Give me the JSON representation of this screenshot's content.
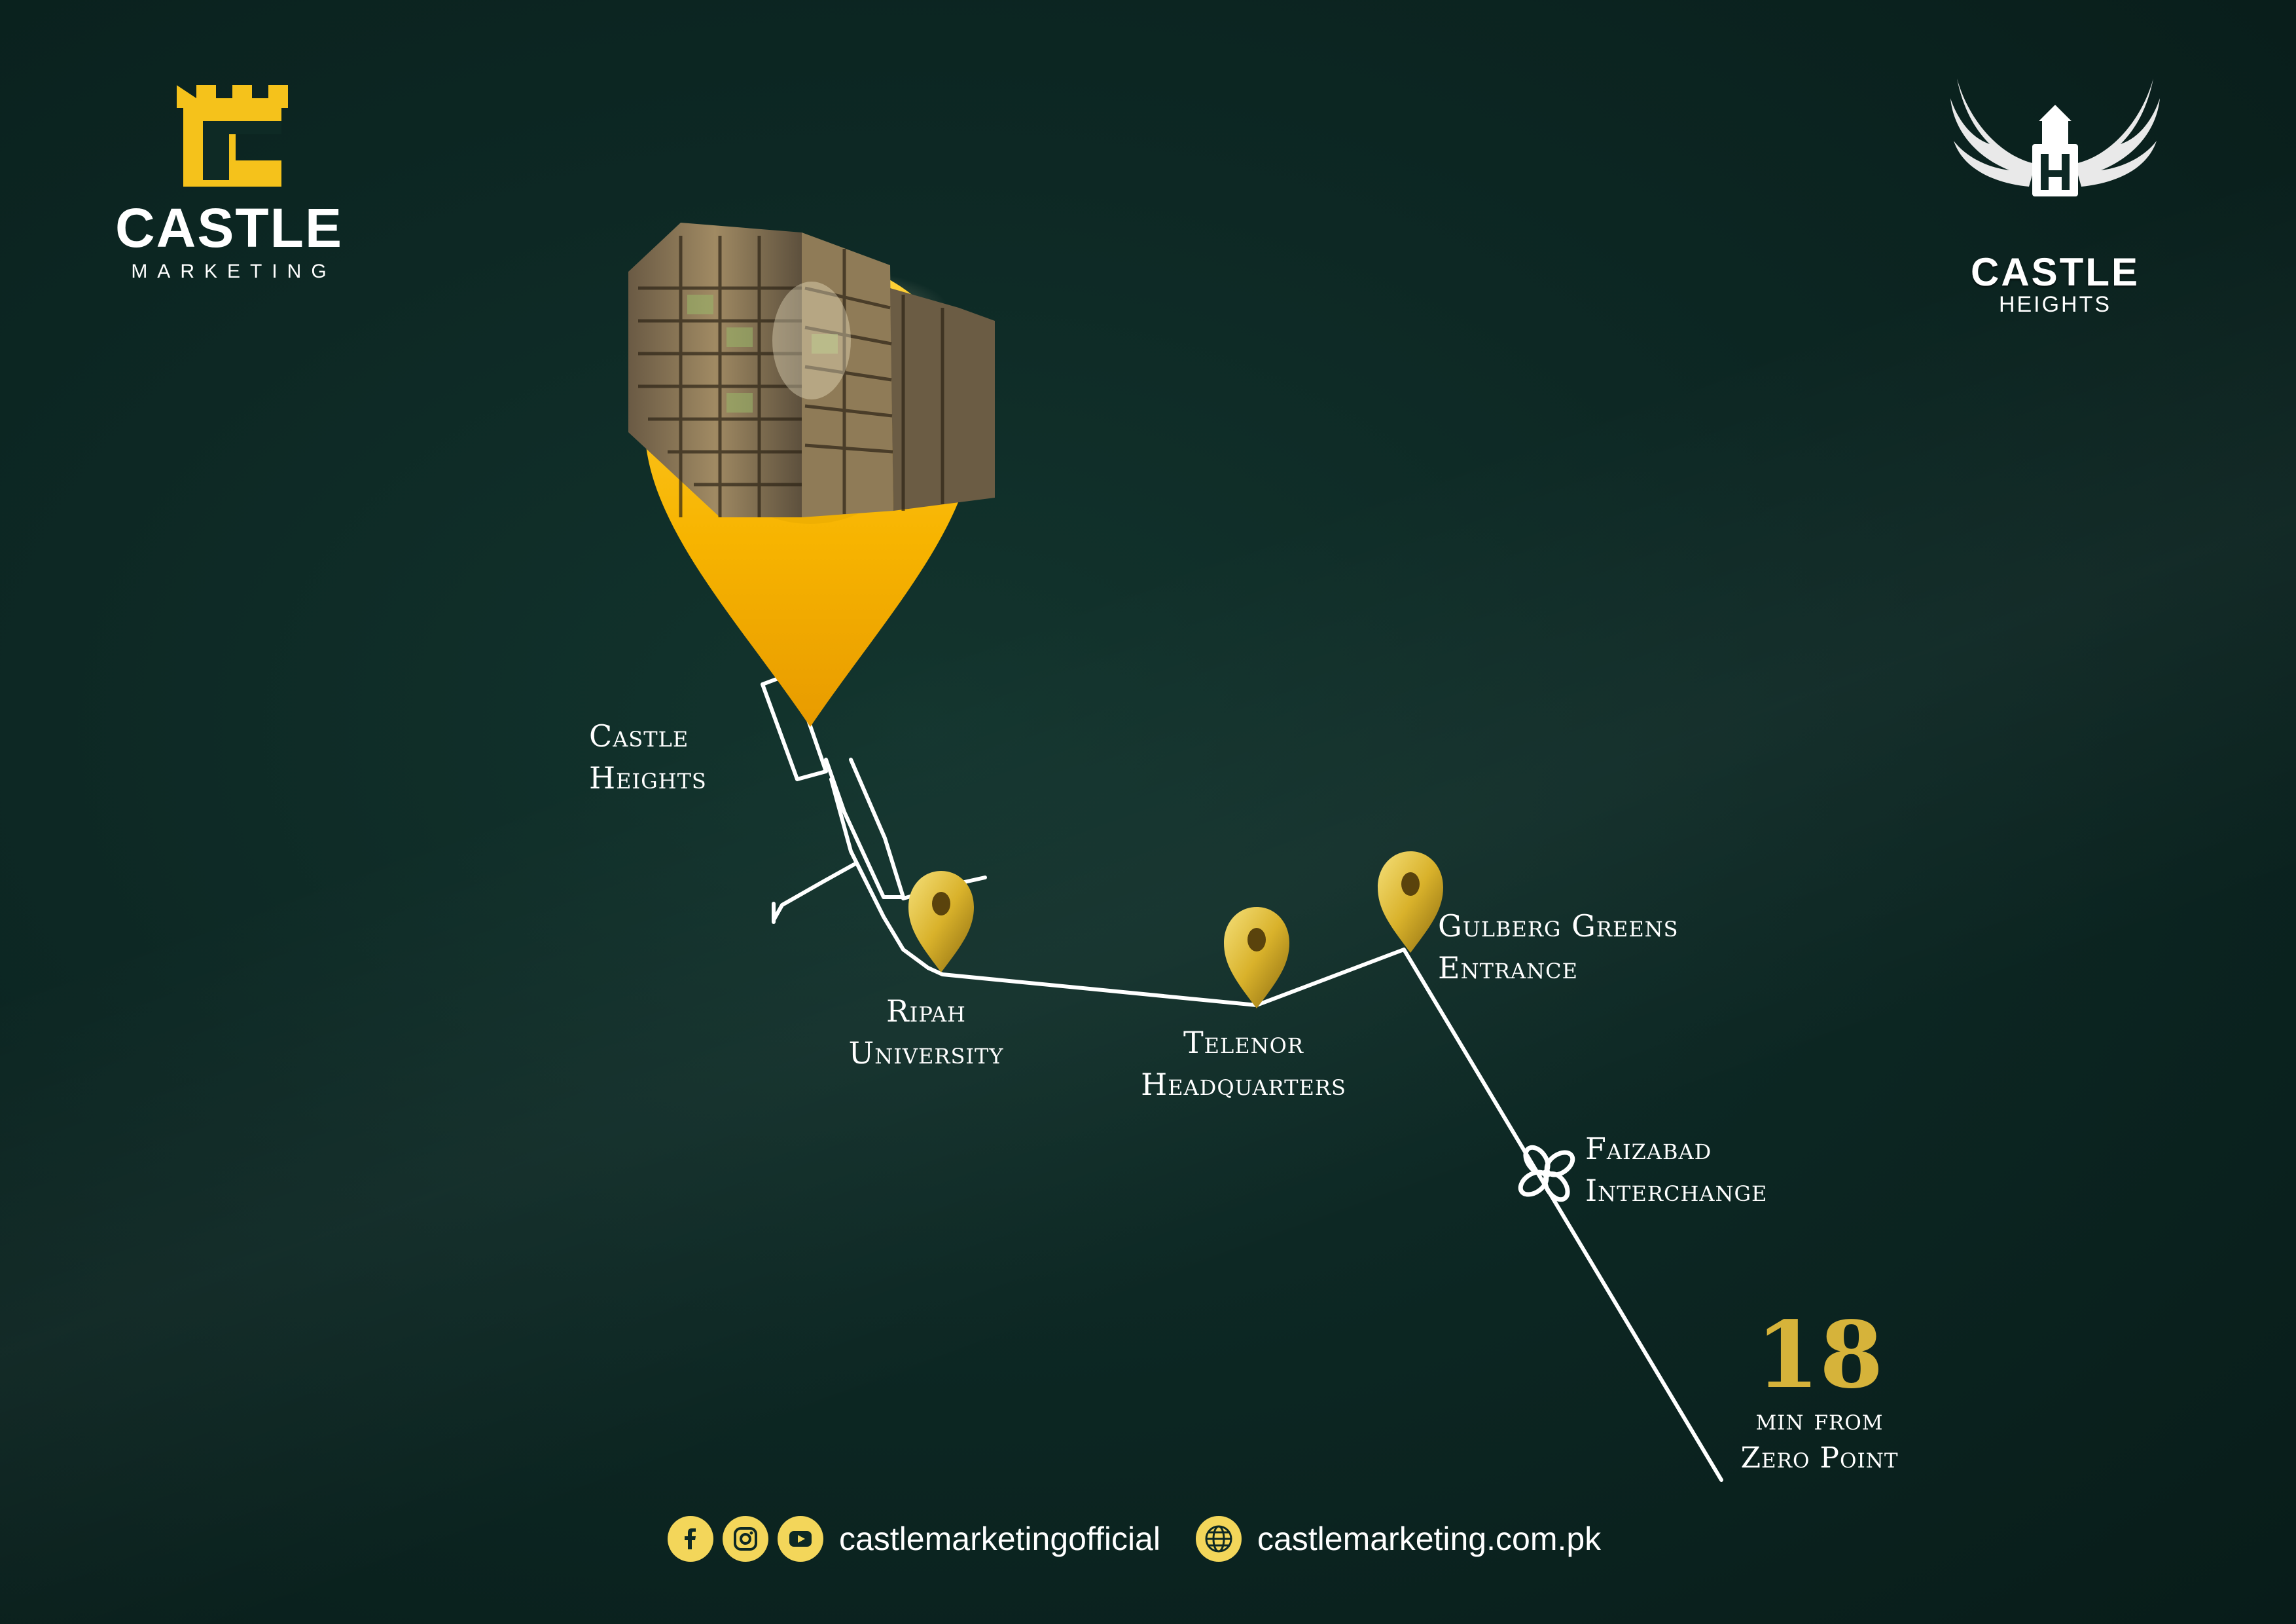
{
  "brand_left": {
    "name": "CASTLE",
    "subtitle": "MARKETING"
  },
  "brand_right": {
    "name": "CASTLE",
    "subtitle": "HEIGHTS"
  },
  "locations": {
    "castle_heights": [
      "Castle",
      "Heights"
    ],
    "ripah": [
      "Ripah",
      "University"
    ],
    "telenor": [
      "Telenor",
      "Headquarters"
    ],
    "gulberg": [
      "Gulberg Greens",
      "Entrance"
    ],
    "faizabad": [
      "Faizabad",
      "Interchange"
    ]
  },
  "duration": {
    "value": "18",
    "line1": "min from",
    "line2": "Zero Point"
  },
  "footer": {
    "social_handle": "castlemarketingofficial",
    "website": "castlemarketing.com.pk",
    "icons": [
      "facebook-icon",
      "instagram-icon",
      "youtube-icon",
      "globe-icon"
    ]
  },
  "colors": {
    "background": "#0d2824",
    "accent_gold": "#f5b800",
    "route": "#ffffff"
  }
}
